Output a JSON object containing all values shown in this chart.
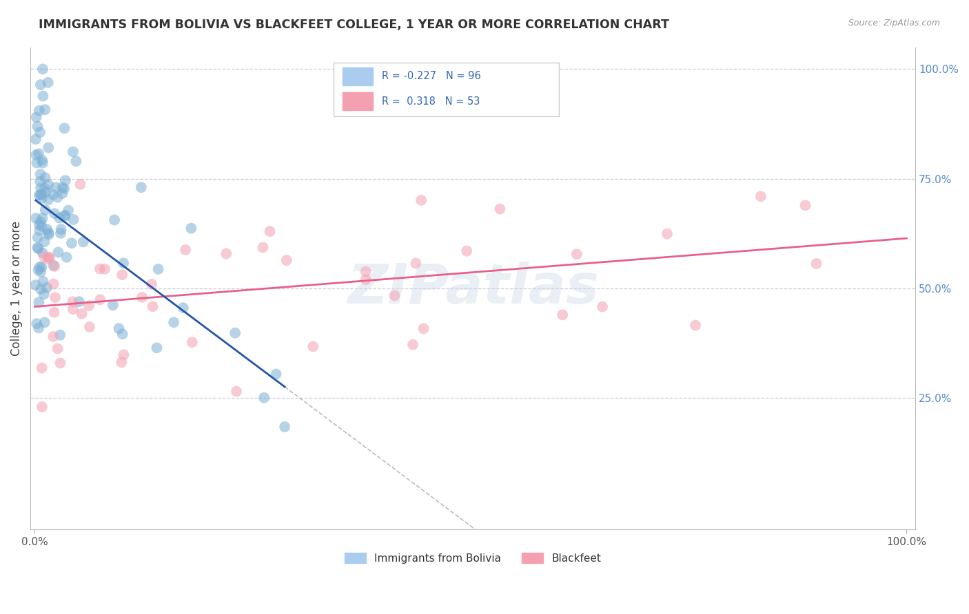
{
  "title": "IMMIGRANTS FROM BOLIVIA VS BLACKFEET COLLEGE, 1 YEAR OR MORE CORRELATION CHART",
  "source_text": "Source: ZipAtlas.com",
  "ylabel": "College, 1 year or more",
  "legend_entry1": "Immigrants from Bolivia",
  "legend_entry2": "Blackfeet",
  "R1": -0.227,
  "N1": 96,
  "R2": 0.318,
  "N2": 53,
  "blue_color": "#7BAFD4",
  "pink_color": "#F4A0B0",
  "blue_line_color": "#2255AA",
  "pink_line_color": "#E8608A",
  "grid_color": "#CCCCDD",
  "watermark": "ZIPatlas",
  "watermark_color": "#C8D8E8",
  "title_color": "#333333",
  "source_color": "#999999",
  "right_axis_color": "#5588CC",
  "bottom_legend_color": "#333333",
  "ylim_min": -0.05,
  "ylim_max": 1.05,
  "xlim_min": -0.005,
  "xlim_max": 1.01,
  "right_yticks": [
    0.25,
    0.5,
    0.75,
    1.0
  ],
  "right_yticklabels": [
    "25.0%",
    "50.0%",
    "75.0%",
    "100.0%"
  ],
  "xtick_left": "0.0%",
  "xtick_right": "100.0%"
}
